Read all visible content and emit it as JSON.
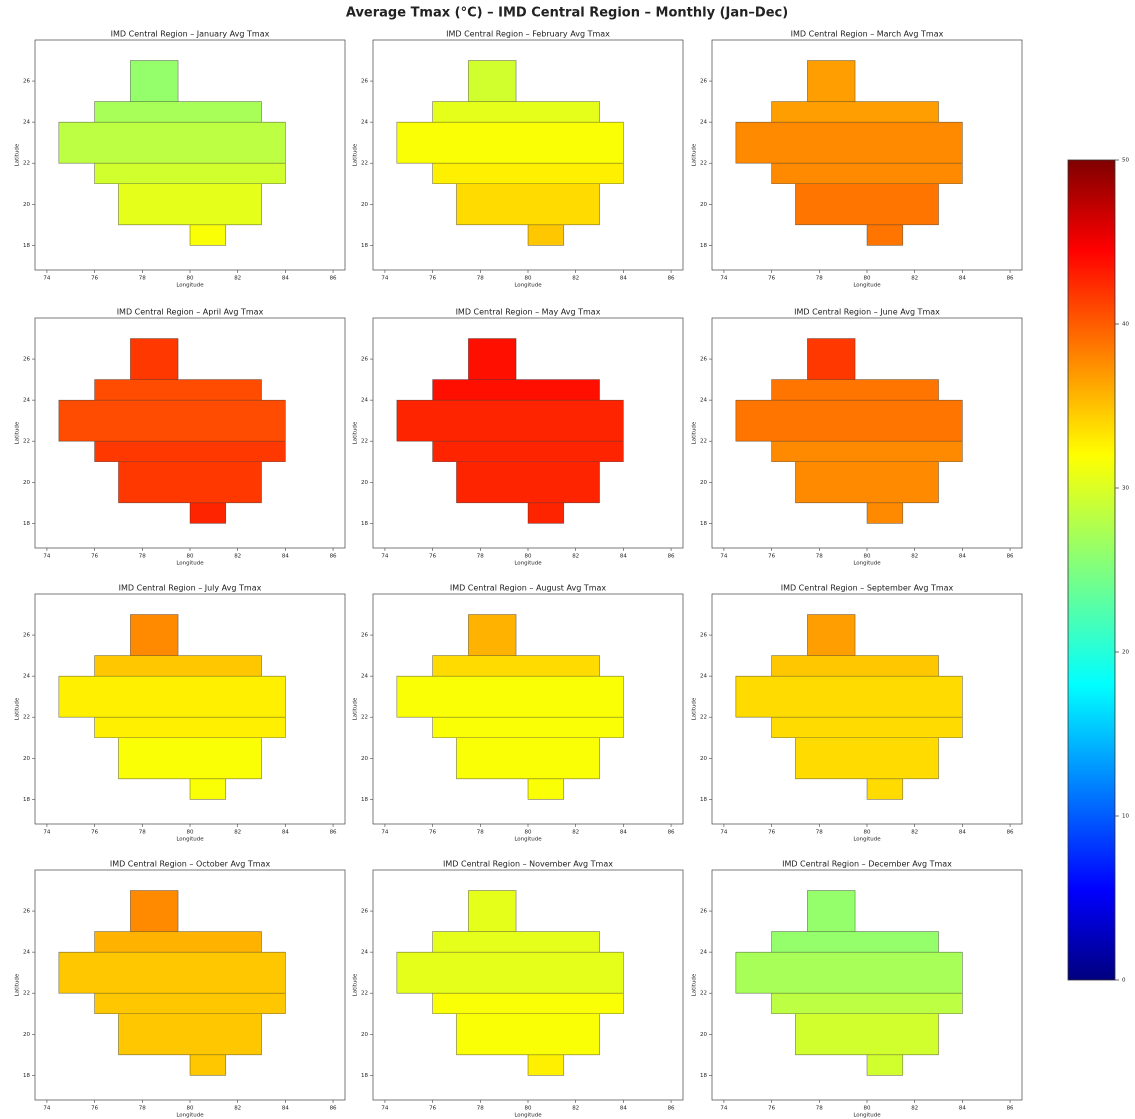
{
  "chart_data": {
    "type": "map",
    "title": "Average Tmax (°C) – IMD Central Region – Monthly (Jan–Dec)",
    "xlabel": "Longitude",
    "ylabel": "Latitude",
    "xlim": [
      73.5,
      86.5
    ],
    "ylim": [
      16.8,
      28
    ],
    "xticks": [
      74,
      76,
      78,
      80,
      82,
      84,
      86
    ],
    "yticks": [
      18,
      20,
      22,
      24,
      26
    ],
    "colormap": "jet",
    "clim": [
      0,
      50
    ],
    "cticks": [
      0,
      10,
      20,
      30,
      40,
      50
    ],
    "cells": [
      {
        "lat": [
          25,
          27
        ],
        "lon": [
          77.5,
          79.5
        ]
      },
      {
        "lat": [
          24,
          25
        ],
        "lon": [
          76,
          83
        ]
      },
      {
        "lat": [
          22,
          24
        ],
        "lon": [
          74.5,
          84
        ]
      },
      {
        "lat": [
          21,
          22
        ],
        "lon": [
          76,
          84
        ]
      },
      {
        "lat": [
          19,
          21
        ],
        "lon": [
          77,
          83
        ]
      },
      {
        "lat": [
          18,
          19
        ],
        "lon": [
          80,
          81.5
        ]
      }
    ],
    "panels": [
      {
        "title": "IMD Central Region – January Avg Tmax",
        "values": [
          26,
          27,
          28,
          29,
          30,
          31
        ]
      },
      {
        "title": "IMD Central Region – February Avg Tmax",
        "values": [
          29,
          30,
          31,
          32,
          33,
          34
        ]
      },
      {
        "title": "IMD Central Region – March Avg Tmax",
        "values": [
          36,
          36,
          37,
          37,
          38,
          38
        ]
      },
      {
        "title": "IMD Central Region – April Avg Tmax",
        "values": [
          41,
          40,
          40,
          41,
          41,
          42
        ]
      },
      {
        "title": "IMD Central Region – May Avg Tmax",
        "values": [
          43,
          43,
          42,
          42,
          42,
          42
        ]
      },
      {
        "title": "IMD Central Region – June Avg Tmax",
        "values": [
          41,
          38,
          38,
          37,
          37,
          37
        ]
      },
      {
        "title": "IMD Central Region – July Avg Tmax",
        "values": [
          37,
          34,
          32,
          32,
          31,
          31
        ]
      },
      {
        "title": "IMD Central Region – August Avg Tmax",
        "values": [
          35,
          33,
          31,
          31,
          31,
          31
        ]
      },
      {
        "title": "IMD Central Region – September Avg Tmax",
        "values": [
          36,
          34,
          33,
          33,
          33,
          33
        ]
      },
      {
        "title": "IMD Central Region – October Avg Tmax",
        "values": [
          37,
          35,
          34,
          34,
          34,
          34
        ]
      },
      {
        "title": "IMD Central Region – November Avg Tmax",
        "values": [
          30,
          30,
          30,
          31,
          31,
          32
        ]
      },
      {
        "title": "IMD Central Region – December Avg Tmax",
        "values": [
          26,
          26,
          27,
          28,
          29,
          29
        ]
      }
    ]
  }
}
